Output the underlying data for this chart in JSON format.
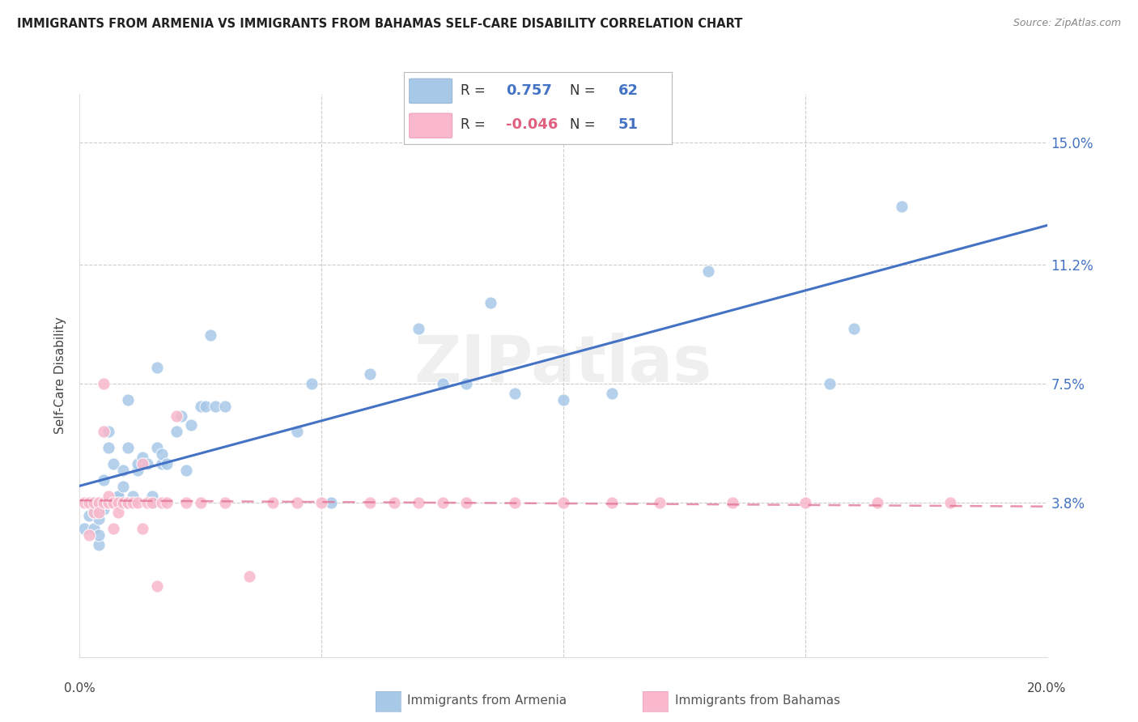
{
  "title": "IMMIGRANTS FROM ARMENIA VS IMMIGRANTS FROM BAHAMAS SELF-CARE DISABILITY CORRELATION CHART",
  "source": "Source: ZipAtlas.com",
  "ylabel": "Self-Care Disability",
  "ytick_labels": [
    "3.8%",
    "7.5%",
    "11.2%",
    "15.0%"
  ],
  "ytick_values": [
    0.038,
    0.075,
    0.112,
    0.15
  ],
  "xlim": [
    0.0,
    0.2
  ],
  "ylim": [
    -0.01,
    0.165
  ],
  "armenia_color": "#a8c8e8",
  "bahamas_color": "#f9b8cb",
  "armenia_line_color": "#4472c4",
  "bahamas_line_color": "#e07090",
  "watermark": "ZIPatlas",
  "legend_armenia_R": "0.757",
  "legend_armenia_N": "62",
  "legend_bahamas_R": "-0.046",
  "legend_bahamas_N": "51",
  "armenia_x": [
    0.001,
    0.002,
    0.003,
    0.003,
    0.003,
    0.004,
    0.004,
    0.004,
    0.005,
    0.005,
    0.005,
    0.005,
    0.006,
    0.006,
    0.006,
    0.006,
    0.007,
    0.007,
    0.007,
    0.008,
    0.008,
    0.008,
    0.009,
    0.009,
    0.01,
    0.01,
    0.011,
    0.012,
    0.012,
    0.013,
    0.014,
    0.015,
    0.015,
    0.016,
    0.016,
    0.017,
    0.017,
    0.018,
    0.02,
    0.021,
    0.022,
    0.023,
    0.025,
    0.026,
    0.027,
    0.028,
    0.03,
    0.045,
    0.048,
    0.052,
    0.06,
    0.07,
    0.075,
    0.08,
    0.085,
    0.09,
    0.1,
    0.11,
    0.13,
    0.155,
    0.16,
    0.17
  ],
  "armenia_y": [
    0.03,
    0.034,
    0.035,
    0.038,
    0.03,
    0.025,
    0.033,
    0.028,
    0.038,
    0.036,
    0.038,
    0.045,
    0.038,
    0.038,
    0.055,
    0.06,
    0.038,
    0.038,
    0.05,
    0.04,
    0.038,
    0.04,
    0.043,
    0.048,
    0.055,
    0.07,
    0.04,
    0.048,
    0.05,
    0.052,
    0.05,
    0.038,
    0.04,
    0.055,
    0.08,
    0.05,
    0.053,
    0.05,
    0.06,
    0.065,
    0.048,
    0.062,
    0.068,
    0.068,
    0.09,
    0.068,
    0.068,
    0.06,
    0.075,
    0.038,
    0.078,
    0.092,
    0.075,
    0.075,
    0.1,
    0.072,
    0.07,
    0.072,
    0.11,
    0.075,
    0.092,
    0.13
  ],
  "bahamas_x": [
    0.001,
    0.002,
    0.002,
    0.003,
    0.003,
    0.004,
    0.004,
    0.004,
    0.005,
    0.005,
    0.005,
    0.006,
    0.006,
    0.006,
    0.007,
    0.007,
    0.008,
    0.008,
    0.009,
    0.01,
    0.01,
    0.011,
    0.012,
    0.013,
    0.013,
    0.014,
    0.015,
    0.016,
    0.017,
    0.018,
    0.02,
    0.022,
    0.025,
    0.03,
    0.035,
    0.04,
    0.045,
    0.05,
    0.06,
    0.065,
    0.07,
    0.075,
    0.08,
    0.09,
    0.1,
    0.11,
    0.12,
    0.135,
    0.15,
    0.165,
    0.18
  ],
  "bahamas_y": [
    0.038,
    0.038,
    0.028,
    0.035,
    0.038,
    0.038,
    0.038,
    0.035,
    0.038,
    0.075,
    0.06,
    0.038,
    0.038,
    0.04,
    0.038,
    0.03,
    0.038,
    0.035,
    0.038,
    0.038,
    0.038,
    0.038,
    0.038,
    0.03,
    0.05,
    0.038,
    0.038,
    0.012,
    0.038,
    0.038,
    0.065,
    0.038,
    0.038,
    0.038,
    0.015,
    0.038,
    0.038,
    0.038,
    0.038,
    0.038,
    0.038,
    0.038,
    0.038,
    0.038,
    0.038,
    0.038,
    0.038,
    0.038,
    0.038,
    0.038,
    0.038
  ]
}
